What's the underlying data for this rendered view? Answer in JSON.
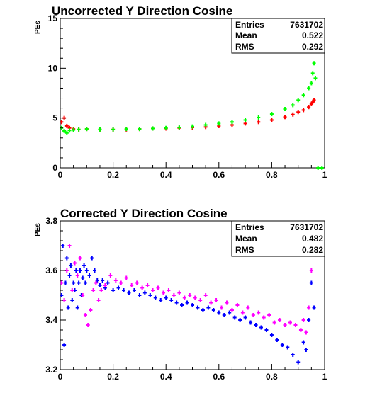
{
  "chart_data": [
    {
      "type": "scatter",
      "title": "Uncorrected Y Direction Cosine",
      "xlabel": "",
      "ylabel": "PEs",
      "xlim": [
        0,
        1
      ],
      "ylim": [
        0,
        15
      ],
      "x_ticks": [
        "0",
        "0.2",
        "0.4",
        "0.6",
        "0.8",
        "1"
      ],
      "y_ticks": [
        "0",
        "5",
        "10",
        "15"
      ],
      "stats": {
        "labels": [
          "Entries",
          "Mean",
          "RMS"
        ],
        "values": [
          "7631702",
          "0.522",
          "0.292"
        ]
      },
      "series": [
        {
          "color": "#ff0000",
          "points": [
            [
              0.005,
              4.6
            ],
            [
              0.015,
              5.0
            ],
            [
              0.025,
              4.2
            ],
            [
              0.035,
              4.0
            ],
            [
              0.05,
              3.9
            ],
            [
              0.07,
              3.85
            ],
            [
              0.1,
              3.9
            ],
            [
              0.15,
              3.85
            ],
            [
              0.2,
              3.85
            ],
            [
              0.25,
              3.85
            ],
            [
              0.3,
              3.9
            ],
            [
              0.35,
              3.95
            ],
            [
              0.4,
              3.95
            ],
            [
              0.45,
              4.0
            ],
            [
              0.5,
              4.05
            ],
            [
              0.55,
              4.1
            ],
            [
              0.6,
              4.2
            ],
            [
              0.65,
              4.3
            ],
            [
              0.7,
              4.45
            ],
            [
              0.75,
              4.6
            ],
            [
              0.8,
              4.8
            ],
            [
              0.85,
              5.1
            ],
            [
              0.88,
              5.35
            ],
            [
              0.9,
              5.6
            ],
            [
              0.92,
              5.8
            ],
            [
              0.94,
              6.1
            ],
            [
              0.95,
              6.4
            ],
            [
              0.955,
              6.6
            ],
            [
              0.96,
              6.8
            ]
          ]
        },
        {
          "color": "#00ff00",
          "points": [
            [
              0.005,
              4.0
            ],
            [
              0.015,
              3.7
            ],
            [
              0.025,
              3.5
            ],
            [
              0.035,
              3.75
            ],
            [
              0.05,
              3.8
            ],
            [
              0.07,
              3.85
            ],
            [
              0.1,
              3.9
            ],
            [
              0.15,
              3.85
            ],
            [
              0.2,
              3.85
            ],
            [
              0.25,
              3.9
            ],
            [
              0.3,
              3.9
            ],
            [
              0.35,
              3.95
            ],
            [
              0.4,
              4.0
            ],
            [
              0.45,
              4.05
            ],
            [
              0.5,
              4.15
            ],
            [
              0.55,
              4.3
            ],
            [
              0.6,
              4.45
            ],
            [
              0.65,
              4.6
            ],
            [
              0.7,
              4.8
            ],
            [
              0.75,
              5.05
            ],
            [
              0.8,
              5.4
            ],
            [
              0.85,
              5.9
            ],
            [
              0.88,
              6.3
            ],
            [
              0.9,
              6.8
            ],
            [
              0.92,
              7.3
            ],
            [
              0.94,
              8.0
            ],
            [
              0.95,
              8.5
            ],
            [
              0.955,
              9.5
            ],
            [
              0.96,
              10.5
            ],
            [
              0.965,
              9.0
            ],
            [
              0.975,
              0.0
            ],
            [
              0.99,
              0.0
            ]
          ]
        }
      ]
    },
    {
      "type": "scatter",
      "title": "Corrected Y Direction Cosine",
      "xlabel": "",
      "ylabel": "PEs",
      "xlim": [
        0,
        1
      ],
      "ylim": [
        3.2,
        3.8
      ],
      "x_ticks": [
        "0",
        "0.2",
        "0.4",
        "0.6",
        "0.8",
        "1"
      ],
      "y_ticks": [
        "3.2",
        "3.4",
        "3.6",
        "3.8"
      ],
      "stats": {
        "labels": [
          "Entries",
          "Mean",
          "RMS"
        ],
        "values": [
          "7631702",
          "0.482",
          "0.282"
        ]
      },
      "series": [
        {
          "color": "#0000ff",
          "points": [
            [
              0.005,
              3.5
            ],
            [
              0.01,
              3.7
            ],
            [
              0.015,
              3.3
            ],
            [
              0.02,
              3.55
            ],
            [
              0.025,
              3.65
            ],
            [
              0.03,
              3.45
            ],
            [
              0.035,
              3.58
            ],
            [
              0.04,
              3.62
            ],
            [
              0.045,
              3.48
            ],
            [
              0.05,
              3.55
            ],
            [
              0.055,
              3.52
            ],
            [
              0.06,
              3.6
            ],
            [
              0.065,
              3.45
            ],
            [
              0.07,
              3.55
            ],
            [
              0.075,
              3.6
            ],
            [
              0.08,
              3.5
            ],
            [
              0.085,
              3.57
            ],
            [
              0.09,
              3.62
            ],
            [
              0.095,
              3.55
            ],
            [
              0.1,
              3.6
            ],
            [
              0.11,
              3.58
            ],
            [
              0.12,
              3.65
            ],
            [
              0.13,
              3.6
            ],
            [
              0.14,
              3.56
            ],
            [
              0.15,
              3.54
            ],
            [
              0.16,
              3.56
            ],
            [
              0.17,
              3.53
            ],
            [
              0.18,
              3.55
            ],
            [
              0.2,
              3.52
            ],
            [
              0.22,
              3.53
            ],
            [
              0.24,
              3.52
            ],
            [
              0.26,
              3.51
            ],
            [
              0.28,
              3.52
            ],
            [
              0.3,
              3.5
            ],
            [
              0.32,
              3.51
            ],
            [
              0.34,
              3.5
            ],
            [
              0.36,
              3.49
            ],
            [
              0.38,
              3.48
            ],
            [
              0.4,
              3.49
            ],
            [
              0.42,
              3.48
            ],
            [
              0.44,
              3.47
            ],
            [
              0.46,
              3.46
            ],
            [
              0.48,
              3.47
            ],
            [
              0.5,
              3.46
            ],
            [
              0.52,
              3.45
            ],
            [
              0.54,
              3.44
            ],
            [
              0.56,
              3.45
            ],
            [
              0.58,
              3.44
            ],
            [
              0.6,
              3.43
            ],
            [
              0.62,
              3.42
            ],
            [
              0.64,
              3.43
            ],
            [
              0.66,
              3.41
            ],
            [
              0.68,
              3.4
            ],
            [
              0.7,
              3.41
            ],
            [
              0.72,
              3.39
            ],
            [
              0.74,
              3.38
            ],
            [
              0.76,
              3.37
            ],
            [
              0.78,
              3.36
            ],
            [
              0.8,
              3.34
            ],
            [
              0.82,
              3.32
            ],
            [
              0.84,
              3.3
            ],
            [
              0.86,
              3.29
            ],
            [
              0.88,
              3.26
            ],
            [
              0.9,
              3.23
            ],
            [
              0.92,
              3.31
            ],
            [
              0.93,
              3.28
            ],
            [
              0.94,
              3.4
            ],
            [
              0.95,
              3.55
            ],
            [
              0.96,
              3.45
            ]
          ]
        },
        {
          "color": "#ff00ff",
          "points": [
            [
              0.005,
              3.55
            ],
            [
              0.015,
              3.48
            ],
            [
              0.025,
              3.6
            ],
            [
              0.035,
              3.7
            ],
            [
              0.045,
              3.52
            ],
            [
              0.055,
              3.63
            ],
            [
              0.065,
              3.58
            ],
            [
              0.075,
              3.65
            ],
            [
              0.085,
              3.5
            ],
            [
              0.095,
              3.42
            ],
            [
              0.105,
              3.38
            ],
            [
              0.115,
              3.44
            ],
            [
              0.125,
              3.52
            ],
            [
              0.135,
              3.55
            ],
            [
              0.145,
              3.48
            ],
            [
              0.155,
              3.52
            ],
            [
              0.17,
              3.54
            ],
            [
              0.19,
              3.58
            ],
            [
              0.21,
              3.56
            ],
            [
              0.23,
              3.55
            ],
            [
              0.25,
              3.57
            ],
            [
              0.27,
              3.54
            ],
            [
              0.29,
              3.55
            ],
            [
              0.31,
              3.53
            ],
            [
              0.33,
              3.54
            ],
            [
              0.35,
              3.52
            ],
            [
              0.37,
              3.53
            ],
            [
              0.39,
              3.51
            ],
            [
              0.41,
              3.52
            ],
            [
              0.43,
              3.5
            ],
            [
              0.45,
              3.51
            ],
            [
              0.47,
              3.49
            ],
            [
              0.49,
              3.5
            ],
            [
              0.51,
              3.49
            ],
            [
              0.53,
              3.48
            ],
            [
              0.55,
              3.5
            ],
            [
              0.57,
              3.47
            ],
            [
              0.59,
              3.48
            ],
            [
              0.61,
              3.45
            ],
            [
              0.63,
              3.47
            ],
            [
              0.65,
              3.44
            ],
            [
              0.67,
              3.46
            ],
            [
              0.69,
              3.43
            ],
            [
              0.71,
              3.45
            ],
            [
              0.73,
              3.42
            ],
            [
              0.75,
              3.43
            ],
            [
              0.77,
              3.41
            ],
            [
              0.79,
              3.42
            ],
            [
              0.81,
              3.39
            ],
            [
              0.83,
              3.4
            ],
            [
              0.85,
              3.38
            ],
            [
              0.87,
              3.39
            ],
            [
              0.89,
              3.38
            ],
            [
              0.91,
              3.36
            ],
            [
              0.92,
              3.4
            ],
            [
              0.93,
              3.35
            ],
            [
              0.94,
              3.45
            ],
            [
              0.95,
              3.6
            ]
          ]
        }
      ]
    }
  ]
}
